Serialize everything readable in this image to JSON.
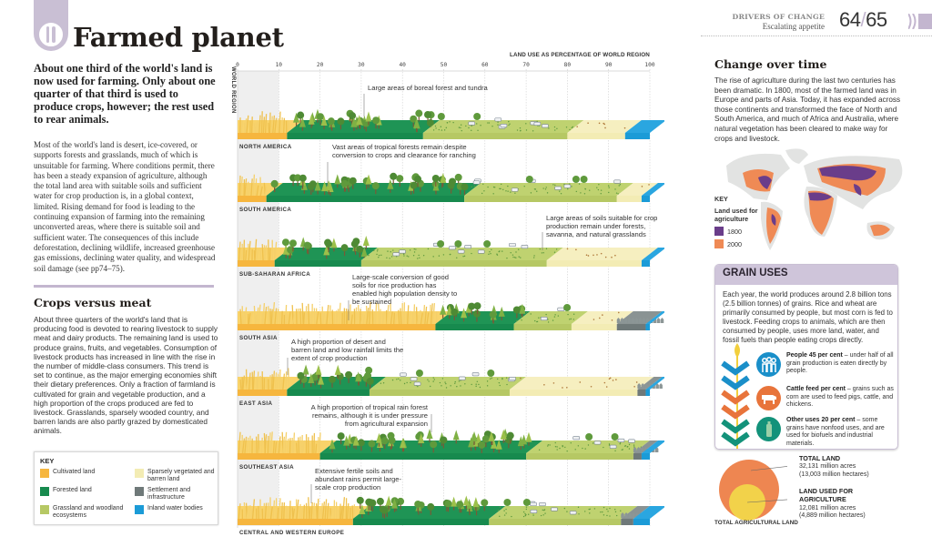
{
  "header": {
    "title": "Farmed planet",
    "section": "DRIVERS OF CHANGE",
    "subsection": "Escalating appetite",
    "page_left": "64",
    "page_sep": "/",
    "page_right": "65"
  },
  "intro": {
    "lead": "About one third of the world's land is now used for farming. Only about one quarter of that third is used to produce crops, however; the rest used to rear animals.",
    "body": "Most of the world's land is desert, ice-covered, or supports forests and grasslands, much of which is unsuitable for farming. Where conditions permit, there has been a steady expansion of agriculture, although the total land area with suitable soils and sufficient water for crop production is, in a global context, limited. Rising demand for food is leading to the continuing expansion of farming into the remaining unconverted areas, where there is suitable soil and sufficient water. The consequences of this include deforestation, declining wildlife, increased greenhouse gas emissions, declining water quality, and widespread soil damage (see pp74–75)."
  },
  "crops": {
    "heading": "Crops versus meat",
    "body": "About three quarters of the world's land that is producing food is devoted to rearing livestock to supply meat and dairy products. The remaining land is used to produce grains, fruits, and vegetables. Consumption of livestock products has increased in line with the rise in the number of middle-class consumers. This trend is set to continue, as the major emerging economies shift their dietary preferences. Only a fraction of farmland is cultivated for grain and vegetable production, and a high proportion of the crops produced are fed to livestock. Grasslands, sparsely wooded country, and barren lands are also partly grazed by domesticated animals."
  },
  "key": {
    "title": "KEY",
    "items": [
      {
        "label": "Cultivated land",
        "color": "#f6b63e"
      },
      {
        "label": "Sparsely vegetated and barren land",
        "color": "#f3ecb4"
      },
      {
        "label": "Forested land",
        "color": "#178a4e"
      },
      {
        "label": "Settlement and infrastructure",
        "color": "#6f7979"
      },
      {
        "label": "Grassland and woodland ecosystems",
        "color": "#b6c864"
      },
      {
        "label": "Inland water bodies",
        "color": "#1b9bd7"
      }
    ]
  },
  "chart_data": {
    "type": "bar",
    "title": "LAND USE AS PERCENTAGE OF WORLD REGION",
    "ylabel": "WORLD REGION",
    "xlim": [
      0,
      100
    ],
    "x_ticks": [
      "0",
      "10",
      "20",
      "30",
      "40",
      "50",
      "60",
      "70",
      "80",
      "90",
      "100"
    ],
    "segments": [
      "Cultivated land",
      "Forested land",
      "Grassland and woodland ecosystems",
      "Sparsely vegetated and barren land",
      "Settlement and infrastructure",
      "Inland water bodies"
    ],
    "rows": [
      {
        "region": "NORTH AMERICA",
        "values": [
          12,
          33,
          35,
          14,
          0,
          6
        ],
        "note": "Large areas of boreal forest and tundra"
      },
      {
        "region": "SOUTH AMERICA",
        "values": [
          7,
          48,
          37,
          6,
          0,
          2
        ],
        "note": "Vast areas of tropical forests remain despite conversion to crops and clearance for ranching"
      },
      {
        "region": "SUB-SAHARAN AFRICA",
        "values": [
          9,
          21,
          45,
          23,
          0,
          2
        ],
        "note": "Large areas of soils suitable for crop production remain under forests, savanna, and natural grasslands"
      },
      {
        "region": "SOUTH ASIA",
        "values": [
          48,
          19,
          14,
          11,
          7,
          1
        ],
        "note": "Large-scale conversion of good soils for rice production has enabled high population density to be sustained"
      },
      {
        "region": "EAST ASIA",
        "values": [
          12,
          20,
          34,
          31,
          2,
          1
        ],
        "note": "A high proportion of desert and barren land and low rainfall limits the extent of crop production"
      },
      {
        "region": "SOUTHEAST ASIA",
        "values": [
          20,
          50,
          26,
          0,
          2,
          2
        ],
        "note": "A high proportion of tropical rain forest remains, although it is under pressure from agricultural expansion"
      },
      {
        "region": "CENTRAL AND WESTERN EUROPE",
        "values": [
          28,
          33,
          32,
          0,
          3,
          4
        ],
        "note": "Extensive fertile soils and abundant rains permit large-scale crop production"
      }
    ]
  },
  "change": {
    "heading": "Change over time",
    "body": "The rise of agriculture during the last two centuries has been dramatic. In 1800, most of the farmed land was in Europe and parts of Asia. Today, it has expanded across those continents and transformed the face of North and South America, and much of Africa and Australia, where natural vegetation has been cleared to make way for crops and livestock.",
    "key_title": "KEY",
    "key_label": "Land used for agriculture",
    "legend": [
      {
        "label": "1800",
        "color": "#6a3d8a"
      },
      {
        "label": "2000",
        "color": "#ef8a55"
      }
    ]
  },
  "grain": {
    "heading": "GRAIN USES",
    "body": "Each year, the world produces around 2.8 billion tons (2.5 billion tonnes) of grains. Rice and wheat are primarily consumed by people, but most corn is fed to livestock. Feeding crops to animals, which are then consumed by people, uses more land, water, and fossil fuels than people eating crops directly.",
    "items": [
      {
        "title": "People 45 per cent",
        "text": " – under half of all grain production is eaten directly by people.",
        "icon": "people-icon",
        "color": "#1a8fc9"
      },
      {
        "title": "Cattle feed per cent",
        "text": " – grains such as corn are used to feed pigs, cattle, and chickens.",
        "icon": "cow-icon",
        "color": "#e8743b"
      },
      {
        "title": "Other uses 20 per cent",
        "text": " – some grains have nonfood uses, and are used for biofuels and industrial materials.",
        "icon": "bottle-icon",
        "color": "#13927a"
      }
    ]
  },
  "land": {
    "total_title": "TOTAL LAND",
    "total_acres": "32,131 million acres",
    "total_ha": "(13,003 million hectares)",
    "ag_title": "LAND USED FOR AGRICULTURE",
    "ag_acres": "12,081 million acres",
    "ag_ha": "(4,889 million hectares)",
    "caption": "TOTAL AGRICULTURAL LAND"
  }
}
